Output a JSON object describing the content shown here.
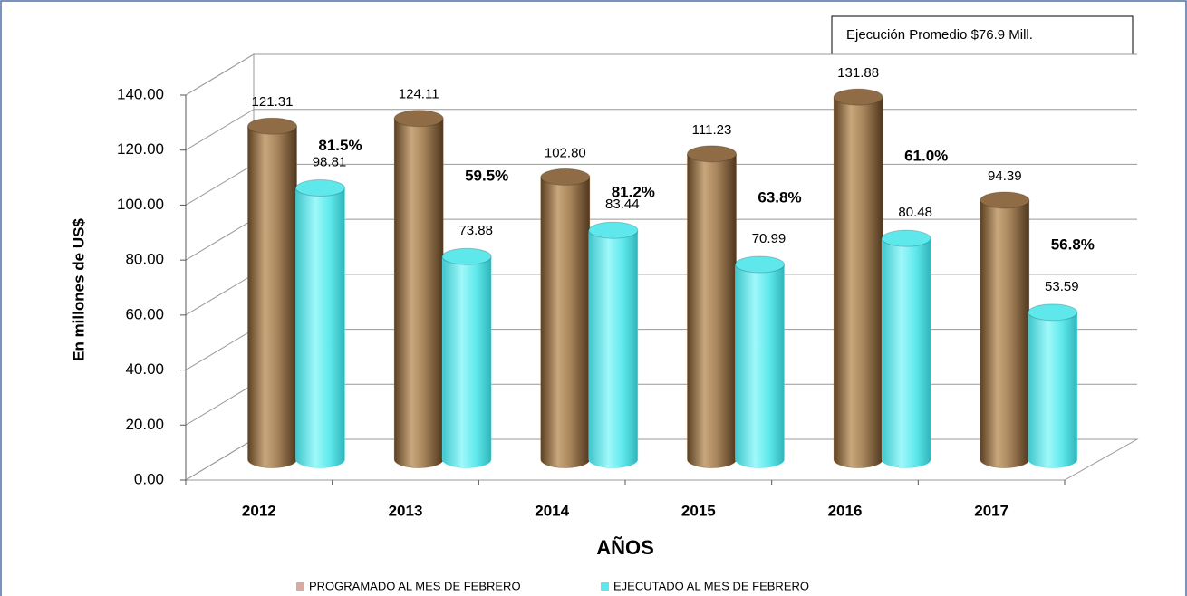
{
  "chart_data": {
    "type": "bar3d",
    "text_box": "Ejecución Promedio $76.9 Mill.",
    "y_label": "En millones de US$",
    "x_label": "AÑOS",
    "categories": [
      "2012",
      "2013",
      "2014",
      "2015",
      "2016",
      "2017"
    ],
    "series": [
      {
        "name": "PROGRAMADO AL MES DE FEBRERO",
        "color": "#8f6c45",
        "values": [
          121.31,
          124.11,
          102.8,
          111.23,
          131.88,
          94.39
        ],
        "value_labels": [
          "121.31",
          "124.11",
          "102.80",
          "111.23",
          "131.88",
          "94.39"
        ]
      },
      {
        "name": "EJECUTADO AL MES DE FEBRERO",
        "color": "#5ee8ec",
        "values": [
          98.81,
          73.88,
          83.44,
          70.99,
          80.48,
          53.59
        ],
        "value_labels": [
          "98.81",
          "73.88",
          "83.44",
          "70.99",
          "80.48",
          "53.59"
        ]
      }
    ],
    "annotations": [
      "81.5%",
      "59.5%",
      "81.2%",
      "63.8%",
      "61.0%",
      "56.8%"
    ],
    "ylim": [
      0,
      140
    ],
    "yticks": [
      {
        "value": 0,
        "label": "0.00"
      },
      {
        "value": 20,
        "label": "20.00"
      },
      {
        "value": 40,
        "label": "40.00"
      },
      {
        "value": 60,
        "label": "60.00"
      },
      {
        "value": 80,
        "label": "80.00"
      },
      {
        "value": 100,
        "label": "100.00"
      },
      {
        "value": 120,
        "label": "120.00"
      },
      {
        "value": 140,
        "label": "140.00"
      }
    ],
    "grid": true
  }
}
